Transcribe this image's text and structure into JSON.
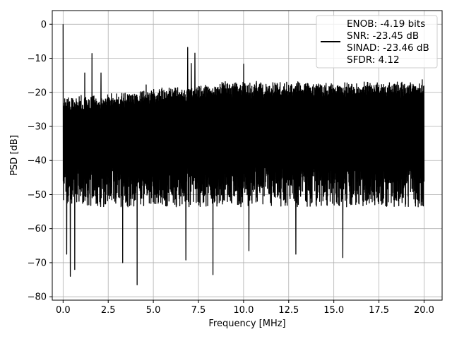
{
  "chart_data": {
    "type": "line",
    "title": "",
    "xlabel": "Frequency [MHz]",
    "ylabel": "PSD [dB]",
    "xlim": [
      -0.6,
      21.0
    ],
    "ylim": [
      -81,
      4
    ],
    "xticks": [
      0.0,
      2.5,
      5.0,
      7.5,
      10.0,
      12.5,
      15.0,
      17.5,
      20.0
    ],
    "xtick_labels": [
      "0.0",
      "2.5",
      "5.0",
      "7.5",
      "10.0",
      "12.5",
      "15.0",
      "17.5",
      "20.0"
    ],
    "yticks": [
      0,
      -10,
      -20,
      -30,
      -40,
      -50,
      -60,
      -70,
      -80
    ],
    "ytick_labels": [
      "0",
      "−10",
      "−20",
      "−30",
      "−40",
      "−50",
      "−60",
      "−70",
      "−80"
    ],
    "grid": true,
    "legend_position": "top-right",
    "legend_lines": [
      "ENOB: -4.19 bits",
      "SNR: -23.45 dB",
      "SINAD: -23.46 dB",
      "SFDR: 4.12"
    ],
    "series_color": "#000000",
    "noise": {
      "x_start": 0.0,
      "x_end": 20.0,
      "top_low_x": -22,
      "top_high_x": -17.5,
      "bottom_typical": -50
    },
    "peaks": [
      {
        "x": 0.0,
        "y": 0
      },
      {
        "x": 1.2,
        "y": -14.3
      },
      {
        "x": 1.6,
        "y": -8.6
      },
      {
        "x": 2.1,
        "y": -14.3
      },
      {
        "x": 4.6,
        "y": -17.8
      },
      {
        "x": 6.9,
        "y": -6.8
      },
      {
        "x": 7.1,
        "y": -11.5
      },
      {
        "x": 7.3,
        "y": -8.5
      },
      {
        "x": 10.0,
        "y": -11.7
      },
      {
        "x": 19.9,
        "y": -16.3
      }
    ],
    "dips": [
      {
        "x": 0.2,
        "y": -67.5
      },
      {
        "x": 0.4,
        "y": -74
      },
      {
        "x": 0.65,
        "y": -72
      },
      {
        "x": 3.3,
        "y": -70
      },
      {
        "x": 4.1,
        "y": -76.5
      },
      {
        "x": 6.8,
        "y": -69.2
      },
      {
        "x": 8.3,
        "y": -73.5
      },
      {
        "x": 10.3,
        "y": -66.5
      },
      {
        "x": 12.9,
        "y": -67.5
      },
      {
        "x": 15.5,
        "y": -68.5
      }
    ]
  }
}
